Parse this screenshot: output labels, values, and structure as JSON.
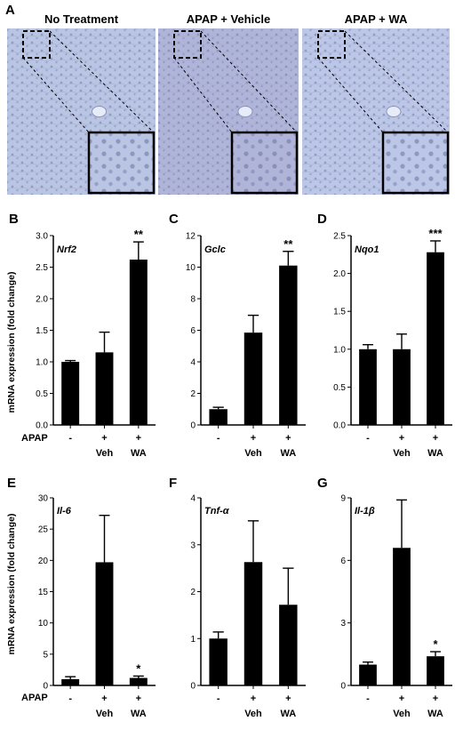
{
  "panel_a": {
    "letter": "A",
    "images": [
      {
        "title": "No Treatment",
        "tone": "#b9c5e3"
      },
      {
        "title": "APAP + Vehicle",
        "tone": "#b0b4d8"
      },
      {
        "title": "APAP + WA",
        "tone": "#bcc6e6"
      }
    ]
  },
  "shared": {
    "ylabel": "mRNA expression (fold change)",
    "row_label": "APAP",
    "treatment_marks": [
      "-",
      "+",
      "+"
    ],
    "groups": [
      "",
      "Veh",
      "WA"
    ]
  },
  "chart_data": [
    {
      "letter": "B",
      "type": "bar",
      "gene": "Nrf2",
      "categories": [
        "-",
        "+ Veh",
        "+ WA"
      ],
      "values": [
        1.0,
        1.15,
        2.62
      ],
      "errors": [
        0.02,
        0.32,
        0.28
      ],
      "sig": [
        "",
        "",
        "**"
      ],
      "ylim": [
        0,
        3.0
      ],
      "ticks": [
        "0.0",
        "0.5",
        "1.0",
        "1.5",
        "2.0",
        "2.5",
        "3.0"
      ]
    },
    {
      "letter": "C",
      "type": "bar",
      "gene": "Gclc",
      "categories": [
        "-",
        "+ Veh",
        "+ WA"
      ],
      "values": [
        1.0,
        5.85,
        10.1
      ],
      "errors": [
        0.12,
        1.1,
        0.9
      ],
      "sig": [
        "",
        "",
        "**"
      ],
      "ylim": [
        0,
        12
      ],
      "ticks": [
        "0",
        "2",
        "4",
        "6",
        "8",
        "10",
        "12"
      ]
    },
    {
      "letter": "D",
      "type": "bar",
      "gene": "Nqo1",
      "categories": [
        "-",
        "+ Veh",
        "+ WA"
      ],
      "values": [
        1.0,
        1.0,
        2.28
      ],
      "errors": [
        0.06,
        0.2,
        0.15
      ],
      "sig": [
        "",
        "",
        "***"
      ],
      "ylim": [
        0,
        2.5
      ],
      "ticks": [
        "0.0",
        "0.5",
        "1.0",
        "1.5",
        "2.0",
        "2.5"
      ]
    },
    {
      "letter": "E",
      "type": "bar",
      "gene": "Il-6",
      "categories": [
        "-",
        "+ Veh",
        "+ WA"
      ],
      "values": [
        1.0,
        19.7,
        1.2
      ],
      "errors": [
        0.4,
        7.5,
        0.3
      ],
      "sig": [
        "",
        "",
        "*"
      ],
      "ylim": [
        0,
        30
      ],
      "ticks": [
        "0",
        "5",
        "10",
        "15",
        "20",
        "25",
        "30"
      ]
    },
    {
      "letter": "F",
      "type": "bar",
      "gene": "Tnf-α",
      "categories": [
        "-",
        "+ Veh",
        "+ WA"
      ],
      "values": [
        1.0,
        2.63,
        1.72
      ],
      "errors": [
        0.14,
        0.88,
        0.78
      ],
      "sig": [
        "",
        "",
        ""
      ],
      "ylim": [
        0,
        4
      ],
      "ticks": [
        "0",
        "1",
        "2",
        "3",
        "4"
      ]
    },
    {
      "letter": "G",
      "type": "bar",
      "gene": "Il-1β",
      "categories": [
        "-",
        "+ Veh",
        "+ WA"
      ],
      "values": [
        1.0,
        6.6,
        1.4
      ],
      "errors": [
        0.12,
        2.3,
        0.22
      ],
      "sig": [
        "",
        "",
        "*"
      ],
      "ylim": [
        0,
        9
      ],
      "ticks": [
        "0",
        "3",
        "6",
        "9"
      ]
    }
  ]
}
